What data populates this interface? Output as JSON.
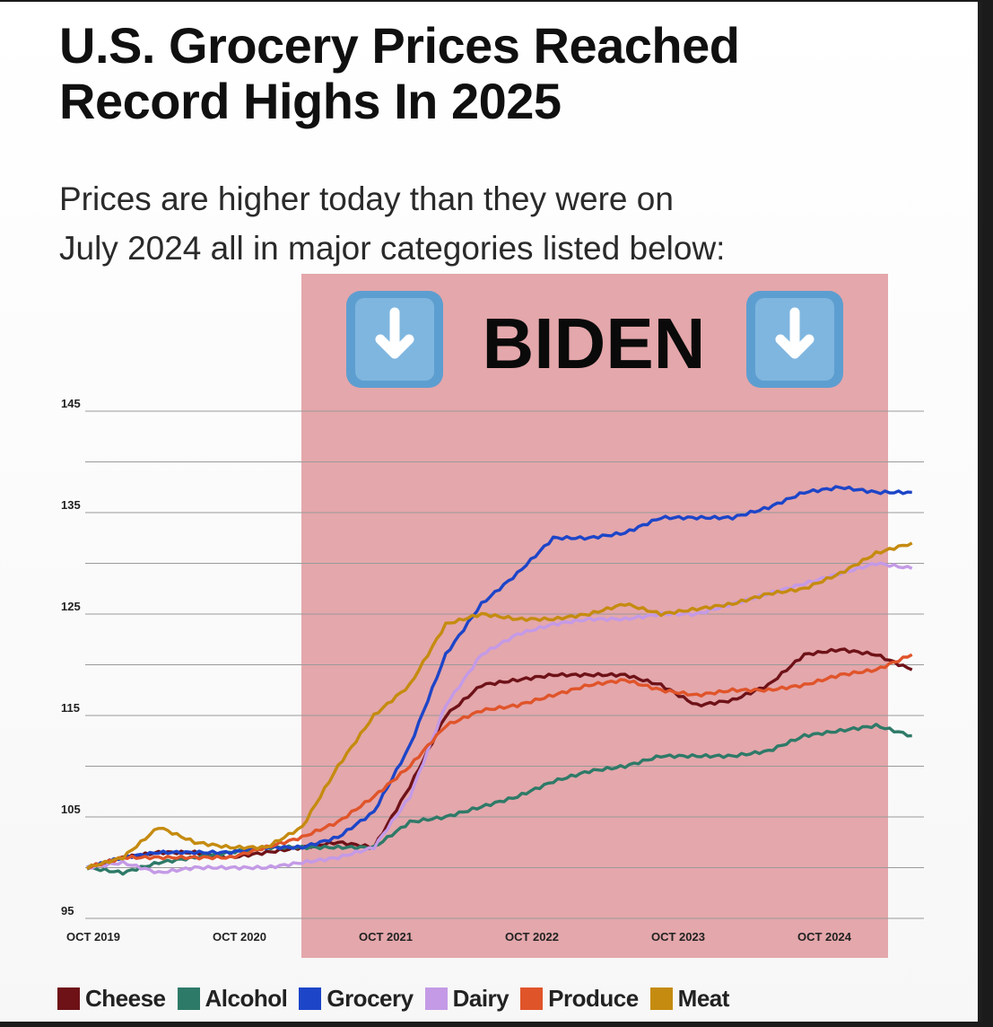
{
  "title": "U.S. Grocery Prices Reached\nRecord Highs In 2025",
  "subtitle": "Prices are higher today than they were on\nJuly 2024 all in major categories listed below:",
  "annotation": {
    "label": "BIDEN",
    "icon": "down-arrow-emoji",
    "shade_color": "#e3a2a6",
    "range": [
      "2021-01-20",
      "2025-01-20"
    ]
  },
  "chart_data": {
    "type": "line",
    "x_ticks": [
      "OCT 2019",
      "OCT 2020",
      "OCT 2021",
      "OCT 2022",
      "OCT 2023",
      "OCT 2024"
    ],
    "y_ticks": [
      95,
      105,
      115,
      125,
      135,
      145
    ],
    "ylim": [
      95,
      145
    ],
    "xlim": [
      "2019-10",
      "2025-08"
    ],
    "grid": true,
    "legend_position": "bottom",
    "x": [
      "2019-10",
      "2020-01",
      "2020-04",
      "2020-07",
      "2020-10",
      "2021-01",
      "2021-04",
      "2021-07",
      "2021-10",
      "2022-01",
      "2022-04",
      "2022-07",
      "2022-10",
      "2023-01",
      "2023-04",
      "2023-07",
      "2023-10",
      "2024-01",
      "2024-04",
      "2024-07",
      "2024-10",
      "2025-01",
      "2025-04",
      "2025-07"
    ],
    "series": [
      {
        "name": "Cheese",
        "color": "#6e1218",
        "values": [
          100,
          101,
          101.5,
          101.5,
          101,
          101.5,
          102,
          102.5,
          102,
          108,
          115,
          118,
          118.5,
          119,
          119,
          119,
          118,
          116,
          116.5,
          118,
          121,
          121.5,
          121,
          119.5
        ]
      },
      {
        "name": "Alcohol",
        "color": "#2e7a68",
        "values": [
          100,
          99.5,
          100.5,
          101,
          101.5,
          102,
          102,
          102,
          102,
          104.5,
          105,
          106,
          107,
          108.5,
          109.5,
          110,
          111,
          111,
          111,
          111.5,
          113,
          113.5,
          114,
          113
        ]
      },
      {
        "name": "Grocery",
        "color": "#1d45c8",
        "values": [
          100,
          101,
          101.5,
          101.5,
          101.5,
          102,
          102,
          103,
          105.5,
          112,
          121,
          126,
          129,
          132.5,
          132.5,
          133,
          134.5,
          134.5,
          134.5,
          135.5,
          137,
          137.5,
          137,
          137
        ]
      },
      {
        "name": "Dairy",
        "color": "#c49ae6",
        "values": [
          100,
          100.5,
          99.5,
          100,
          100,
          100,
          100.5,
          101,
          102,
          107,
          116,
          121,
          123,
          124,
          124.5,
          124.5,
          125,
          125,
          126,
          127,
          128,
          129,
          130,
          129.5
        ]
      },
      {
        "name": "Produce",
        "color": "#e0542a",
        "values": [
          100,
          101,
          101,
          101,
          101,
          102,
          103,
          104.5,
          107,
          110,
          114,
          115.5,
          116,
          117,
          118,
          118.5,
          117.5,
          117,
          117.5,
          117.5,
          118,
          119,
          119.5,
          121
        ]
      },
      {
        "name": "Meat",
        "color": "#c58b10",
        "values": [
          100,
          101,
          104,
          102.5,
          102,
          102,
          104,
          110,
          115,
          118,
          124,
          125,
          124.5,
          124.5,
          125,
          126,
          125,
          125.5,
          126,
          127,
          127.5,
          129,
          131,
          132
        ]
      }
    ]
  }
}
